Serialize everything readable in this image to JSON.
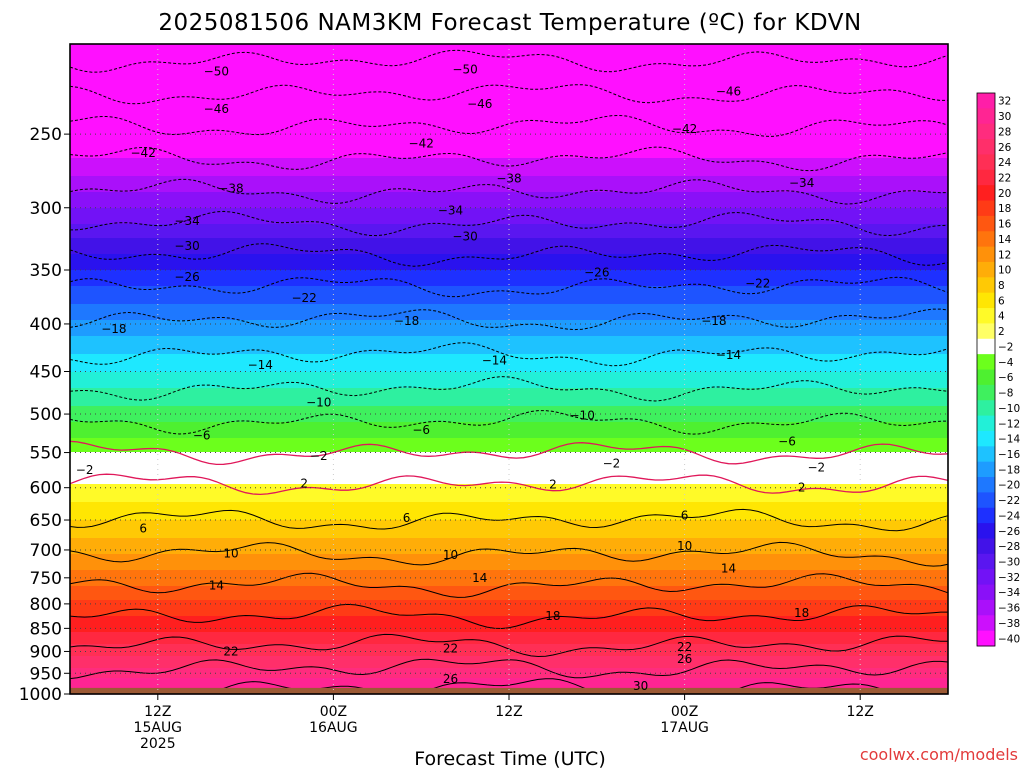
{
  "chart_data": {
    "type": "heatmap",
    "title": "2025081506 NAM3KM Forecast Temperature (ºC) for KDVN",
    "xlabel": "Forecast Time (UTC)",
    "ylabel": "",
    "credit": "coolwx.com/models",
    "x_ticks": [
      {
        "label": "12Z",
        "sub1": "15AUG",
        "sub2": "2025",
        "hour": 6
      },
      {
        "label": "00Z",
        "sub1": "16AUG",
        "sub2": "",
        "hour": 18
      },
      {
        "label": "12Z",
        "sub1": "",
        "sub2": "",
        "hour": 30
      },
      {
        "label": "00Z",
        "sub1": "17AUG",
        "sub2": "",
        "hour": 42
      },
      {
        "label": "12Z",
        "sub1": "",
        "sub2": "",
        "hour": 54
      }
    ],
    "xlim_hours": [
      0,
      60
    ],
    "y_ticks": [
      250,
      300,
      350,
      400,
      450,
      500,
      550,
      600,
      650,
      700,
      750,
      800,
      850,
      900,
      950,
      1000
    ],
    "ylim_hPa": [
      1000,
      200
    ],
    "y_scale": "log-pressure",
    "grid": true,
    "ground_color": "#9c5a35",
    "colorbar_ticks": [
      "32",
      "30",
      "28",
      "26",
      "24",
      "22",
      "20",
      "18",
      "16",
      "14",
      "12",
      "10",
      "8",
      "6",
      "4",
      "2",
      "−2",
      "−4",
      "−6",
      "−8",
      "−10",
      "−12",
      "−14",
      "−16",
      "−18",
      "−20",
      "−22",
      "−24",
      "−26",
      "−28",
      "−30",
      "−32",
      "−34",
      "−36",
      "−38",
      "−40"
    ],
    "colorbar_colors": [
      "#ff1ea8",
      "#ff2593",
      "#ff2c7e",
      "#ff2f6a",
      "#ff2f55",
      "#ff2840",
      "#ff1f1f",
      "#ff3b16",
      "#ff5711",
      "#ff740d",
      "#ff910a",
      "#ffad08",
      "#ffc905",
      "#ffe603",
      "#fffa28",
      "#ffff66",
      "#ffffff",
      "#6cff1c",
      "#4ef030",
      "#3ff05e",
      "#2ef0a0",
      "#22f0d8",
      "#1ee8ff",
      "#1ec2ff",
      "#1e9cff",
      "#1e78ff",
      "#1e54ff",
      "#1e30ff",
      "#2a12ee",
      "#4212e8",
      "#5a16f0",
      "#7212f6",
      "#8a10f8",
      "#aa10fa",
      "#cc10fc",
      "#ff10ff"
    ],
    "profile": [
      {
        "p": 1000,
        "t": 31
      },
      {
        "p": 950,
        "t": 27
      },
      {
        "p": 900,
        "t": 23
      },
      {
        "p": 850,
        "t": 19.5
      },
      {
        "p": 800,
        "t": 16.5
      },
      {
        "p": 750,
        "t": 13
      },
      {
        "p": 700,
        "t": 9.5
      },
      {
        "p": 650,
        "t": 6
      },
      {
        "p": 600,
        "t": 2.5
      },
      {
        "p": 550,
        "t": -2
      },
      {
        "p": 500,
        "t": -7
      },
      {
        "p": 450,
        "t": -12
      },
      {
        "p": 400,
        "t": -17.5
      },
      {
        "p": 350,
        "t": -24
      },
      {
        "p": 300,
        "t": -32
      },
      {
        "p": 250,
        "t": -41
      },
      {
        "p": 200,
        "t": -52
      }
    ],
    "contour_levels": [
      30,
      26,
      22,
      18,
      14,
      10,
      6,
      2,
      -2,
      -6,
      -10,
      -14,
      -18,
      -22,
      -26,
      -30,
      -34,
      -38,
      -42,
      -46,
      -50
    ],
    "contour_labels": [
      {
        "v": "−50",
        "h": 10,
        "p": 214
      },
      {
        "v": "−50",
        "h": 27,
        "p": 213
      },
      {
        "v": "−46",
        "h": 10,
        "p": 235
      },
      {
        "v": "−46",
        "h": 28,
        "p": 232
      },
      {
        "v": "−46",
        "h": 45,
        "p": 225
      },
      {
        "v": "−42",
        "h": 5,
        "p": 262
      },
      {
        "v": "−42",
        "h": 24,
        "p": 256
      },
      {
        "v": "−42",
        "h": 42,
        "p": 247
      },
      {
        "v": "−38",
        "h": 11,
        "p": 286
      },
      {
        "v": "−38",
        "h": 30,
        "p": 279
      },
      {
        "v": "−34",
        "h": 8,
        "p": 310
      },
      {
        "v": "−34",
        "h": 26,
        "p": 302
      },
      {
        "v": "−34",
        "h": 50,
        "p": 282
      },
      {
        "v": "−30",
        "h": 8,
        "p": 330
      },
      {
        "v": "−30",
        "h": 27,
        "p": 322
      },
      {
        "v": "−26",
        "h": 8,
        "p": 356
      },
      {
        "v": "−26",
        "h": 36,
        "p": 352
      },
      {
        "v": "−22",
        "h": 16,
        "p": 375
      },
      {
        "v": "−22",
        "h": 47,
        "p": 362
      },
      {
        "v": "−18",
        "h": 3,
        "p": 405
      },
      {
        "v": "−18",
        "h": 23,
        "p": 397
      },
      {
        "v": "−18",
        "h": 44,
        "p": 397
      },
      {
        "v": "−14",
        "h": 13,
        "p": 443
      },
      {
        "v": "−14",
        "h": 29,
        "p": 438
      },
      {
        "v": "−14",
        "h": 45,
        "p": 432
      },
      {
        "v": "−10",
        "h": 17,
        "p": 486
      },
      {
        "v": "−10",
        "h": 35,
        "p": 502
      },
      {
        "v": "−6",
        "h": 9,
        "p": 527
      },
      {
        "v": "−6",
        "h": 24,
        "p": 520
      },
      {
        "v": "−6",
        "h": 49,
        "p": 535
      },
      {
        "v": "−2",
        "h": 17,
        "p": 555
      },
      {
        "v": "−2",
        "h": 1,
        "p": 574
      },
      {
        "v": "−2",
        "h": 37,
        "p": 565
      },
      {
        "v": "−2",
        "h": 51,
        "p": 571
      },
      {
        "v": "2",
        "h": 16,
        "p": 594
      },
      {
        "v": "2",
        "h": 33,
        "p": 595
      },
      {
        "v": "2",
        "h": 50,
        "p": 600
      },
      {
        "v": "6",
        "h": 5,
        "p": 664
      },
      {
        "v": "6",
        "h": 23,
        "p": 647
      },
      {
        "v": "6",
        "h": 42,
        "p": 643
      },
      {
        "v": "10",
        "h": 11,
        "p": 706
      },
      {
        "v": "10",
        "h": 26,
        "p": 709
      },
      {
        "v": "10",
        "h": 42,
        "p": 693
      },
      {
        "v": "14",
        "h": 10,
        "p": 764
      },
      {
        "v": "14",
        "h": 28,
        "p": 750
      },
      {
        "v": "14",
        "h": 45,
        "p": 733
      },
      {
        "v": "18",
        "h": 33,
        "p": 824
      },
      {
        "v": "18",
        "h": 50,
        "p": 818
      },
      {
        "v": "22",
        "h": 11,
        "p": 900
      },
      {
        "v": "22",
        "h": 26,
        "p": 893
      },
      {
        "v": "22",
        "h": 42,
        "p": 890
      },
      {
        "v": "26",
        "h": 26,
        "p": 964
      },
      {
        "v": "26",
        "h": 42,
        "p": 917
      },
      {
        "v": "30",
        "h": 39,
        "p": 980
      }
    ]
  }
}
